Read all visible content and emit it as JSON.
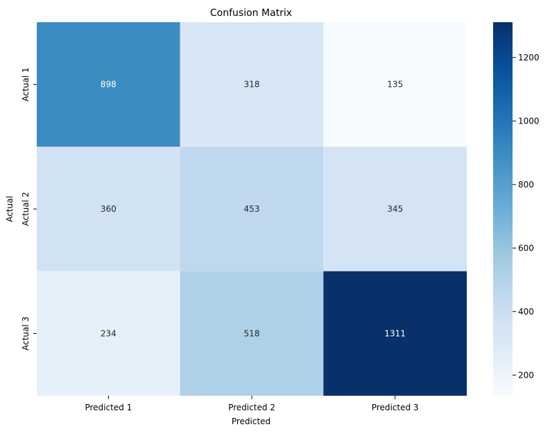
{
  "chart_data": {
    "type": "heatmap",
    "title": "Confusion Matrix",
    "xlabel": "Predicted",
    "ylabel": "Actual",
    "x_categories": [
      "Predicted 1",
      "Predicted 2",
      "Predicted 3"
    ],
    "y_categories": [
      "Actual 1",
      "Actual 2",
      "Actual 3"
    ],
    "values": [
      [
        898,
        318,
        135
      ],
      [
        360,
        453,
        345
      ],
      [
        234,
        518,
        1311
      ]
    ],
    "colorbar": {
      "min": 135,
      "max": 1311,
      "ticks": [
        200,
        400,
        600,
        800,
        1000,
        1200
      ],
      "colormap": "Blues"
    },
    "annotations": "cell values shown"
  }
}
